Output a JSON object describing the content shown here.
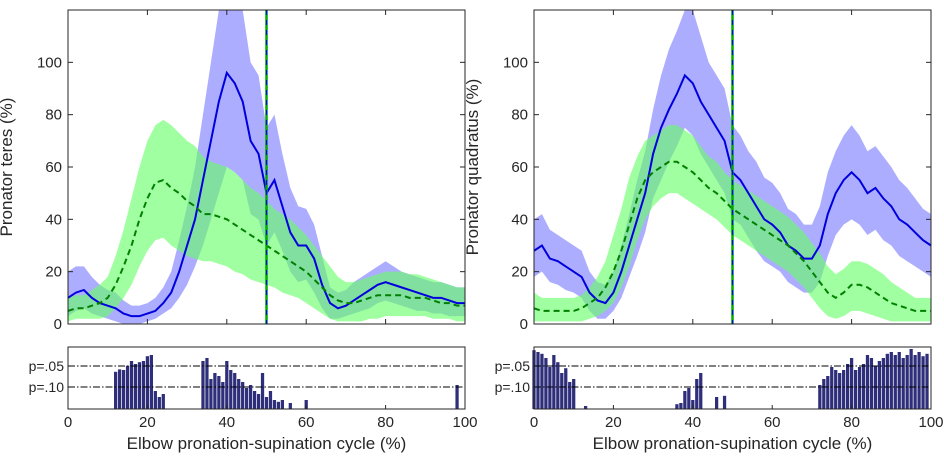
{
  "chart_data": [
    {
      "type": "line",
      "ylabel": "Pronator teres (%)",
      "xlim": [
        0,
        100
      ],
      "ylim": [
        0,
        120
      ],
      "yticks": [
        0,
        20,
        40,
        60,
        80,
        100
      ],
      "xticks": [
        0,
        20,
        40,
        60,
        80,
        100
      ],
      "vline_x": 50,
      "series": [
        {
          "style": "solid",
          "color": "#0000dd",
          "band_color": "#7b7bff",
          "x": [
            0,
            2,
            4,
            6,
            8,
            10,
            12,
            14,
            16,
            18,
            20,
            22,
            24,
            26,
            28,
            30,
            32,
            34,
            36,
            38,
            40,
            42,
            44,
            46,
            48,
            50,
            52,
            54,
            56,
            58,
            60,
            62,
            64,
            66,
            68,
            70,
            72,
            74,
            76,
            78,
            80,
            82,
            84,
            86,
            88,
            90,
            92,
            94,
            96,
            98,
            100
          ],
          "y": [
            10,
            12,
            13,
            10,
            8,
            7,
            6,
            4,
            3,
            3,
            4,
            5,
            8,
            12,
            20,
            30,
            40,
            55,
            70,
            85,
            96,
            92,
            85,
            70,
            65,
            50,
            55,
            45,
            35,
            30,
            30,
            25,
            15,
            8,
            6,
            7,
            9,
            11,
            13,
            15,
            16,
            15,
            14,
            13,
            12,
            11,
            10,
            10,
            9,
            8,
            8
          ],
          "lower": [
            3,
            5,
            6,
            4,
            3,
            2,
            1,
            0,
            0,
            0,
            1,
            2,
            4,
            6,
            10,
            15,
            22,
            30,
            40,
            50,
            60,
            58,
            55,
            42,
            40,
            30,
            35,
            28,
            20,
            16,
            17,
            12,
            6,
            2,
            2,
            3,
            4,
            5,
            6,
            8,
            9,
            8,
            7,
            6,
            5,
            5,
            4,
            4,
            3,
            3,
            3
          ],
          "upper": [
            20,
            22,
            22,
            18,
            15,
            13,
            12,
            9,
            7,
            7,
            8,
            10,
            14,
            20,
            32,
            45,
            60,
            80,
            100,
            120,
            120,
            120,
            120,
            100,
            95,
            75,
            80,
            65,
            52,
            45,
            44,
            38,
            26,
            14,
            12,
            13,
            16,
            18,
            20,
            22,
            24,
            22,
            20,
            19,
            18,
            17,
            16,
            16,
            15,
            14,
            14
          ]
        },
        {
          "style": "dashed",
          "color": "#007f00",
          "band_color": "#66ff66",
          "x": [
            0,
            2,
            4,
            6,
            8,
            10,
            12,
            14,
            16,
            18,
            20,
            22,
            24,
            26,
            28,
            30,
            32,
            34,
            36,
            38,
            40,
            42,
            44,
            46,
            48,
            50,
            52,
            54,
            56,
            58,
            60,
            62,
            64,
            66,
            68,
            70,
            72,
            74,
            76,
            78,
            80,
            82,
            84,
            86,
            88,
            90,
            92,
            94,
            96,
            98,
            100
          ],
          "y": [
            5,
            6,
            6,
            7,
            8,
            10,
            15,
            22,
            30,
            40,
            48,
            54,
            55,
            52,
            50,
            47,
            45,
            42,
            42,
            41,
            40,
            38,
            36,
            34,
            32,
            30,
            28,
            26,
            24,
            22,
            20,
            17,
            14,
            11,
            9,
            8,
            8,
            9,
            10,
            11,
            11,
            11,
            11,
            10,
            10,
            10,
            9,
            8,
            8,
            7,
            7
          ],
          "lower": [
            1,
            2,
            2,
            2,
            2,
            3,
            6,
            10,
            15,
            22,
            28,
            32,
            33,
            30,
            28,
            26,
            25,
            24,
            24,
            23,
            22,
            20,
            19,
            17,
            16,
            15,
            14,
            12,
            11,
            10,
            8,
            6,
            4,
            2,
            1,
            1,
            1,
            1,
            2,
            2,
            3,
            3,
            3,
            3,
            3,
            3,
            2,
            2,
            2,
            1,
            1
          ],
          "upper": [
            10,
            11,
            11,
            13,
            15,
            18,
            26,
            36,
            48,
            60,
            70,
            76,
            78,
            76,
            73,
            70,
            68,
            64,
            62,
            61,
            60,
            58,
            55,
            52,
            50,
            47,
            44,
            42,
            40,
            37,
            34,
            30,
            26,
            22,
            18,
            16,
            16,
            17,
            18,
            19,
            20,
            20,
            20,
            19,
            19,
            18,
            17,
            16,
            15,
            14,
            14
          ]
        }
      ],
      "significance": {
        "levels": [
          "p=.05",
          "p=.10"
        ],
        "x": [
          12,
          13,
          14,
          15,
          16,
          17,
          18,
          19,
          20,
          21,
          22,
          23,
          24,
          34,
          35,
          36,
          37,
          38,
          39,
          40,
          41,
          42,
          43,
          44,
          45,
          46,
          47,
          48,
          49,
          50,
          51,
          52,
          53,
          54,
          56,
          60,
          98
        ],
        "v": [
          0.62,
          0.66,
          0.65,
          0.72,
          0.8,
          0.75,
          0.78,
          0.8,
          0.88,
          0.9,
          0.3,
          0.2,
          0.25,
          0.8,
          0.85,
          0.5,
          0.6,
          0.55,
          0.45,
          0.8,
          0.65,
          0.6,
          0.5,
          0.45,
          0.35,
          0.4,
          0.3,
          0.25,
          0.6,
          0.2,
          0.3,
          0.15,
          0.12,
          0.15,
          0.1,
          0.15,
          0.4
        ]
      }
    },
    {
      "type": "line",
      "ylabel": "Pronator quadratus (%)",
      "xlim": [
        0,
        100
      ],
      "ylim": [
        0,
        120
      ],
      "yticks": [
        0,
        20,
        40,
        60,
        80,
        100
      ],
      "xticks": [
        0,
        20,
        40,
        60,
        80,
        100
      ],
      "vline_x": 50,
      "series": [
        {
          "style": "solid",
          "color": "#0000dd",
          "band_color": "#7b7bff",
          "x": [
            0,
            2,
            4,
            6,
            8,
            10,
            12,
            14,
            16,
            18,
            20,
            22,
            24,
            26,
            28,
            30,
            32,
            34,
            36,
            38,
            40,
            42,
            44,
            46,
            48,
            50,
            52,
            54,
            56,
            58,
            60,
            62,
            64,
            66,
            68,
            70,
            72,
            74,
            76,
            78,
            80,
            82,
            84,
            86,
            88,
            90,
            92,
            94,
            96,
            98,
            100
          ],
          "y": [
            28,
            30,
            25,
            24,
            22,
            20,
            18,
            12,
            9,
            8,
            12,
            20,
            30,
            40,
            50,
            65,
            75,
            82,
            88,
            95,
            92,
            85,
            80,
            75,
            70,
            58,
            55,
            50,
            45,
            40,
            38,
            35,
            30,
            28,
            25,
            25,
            30,
            42,
            50,
            55,
            58,
            55,
            50,
            52,
            48,
            45,
            40,
            38,
            35,
            32,
            30
          ],
          "lower": [
            18,
            20,
            16,
            15,
            13,
            12,
            10,
            5,
            2,
            2,
            5,
            10,
            18,
            26,
            35,
            48,
            55,
            62,
            68,
            75,
            72,
            65,
            60,
            55,
            50,
            40,
            38,
            33,
            28,
            24,
            22,
            20,
            16,
            14,
            12,
            12,
            16,
            26,
            34,
            38,
            40,
            38,
            34,
            36,
            32,
            30,
            26,
            24,
            22,
            20,
            18
          ],
          "upper": [
            40,
            42,
            36,
            34,
            32,
            30,
            28,
            20,
            16,
            15,
            20,
            30,
            42,
            55,
            66,
            82,
            95,
            105,
            112,
            120,
            120,
            110,
            100,
            95,
            90,
            76,
            72,
            66,
            62,
            56,
            54,
            50,
            44,
            42,
            38,
            38,
            45,
            58,
            66,
            72,
            76,
            72,
            66,
            68,
            64,
            60,
            55,
            52,
            48,
            44,
            42
          ]
        },
        {
          "style": "dashed",
          "color": "#007f00",
          "band_color": "#66ff66",
          "x": [
            0,
            2,
            4,
            6,
            8,
            10,
            12,
            14,
            16,
            18,
            20,
            22,
            24,
            26,
            28,
            30,
            32,
            34,
            36,
            38,
            40,
            42,
            44,
            46,
            48,
            50,
            52,
            54,
            56,
            58,
            60,
            62,
            64,
            66,
            68,
            70,
            72,
            74,
            76,
            78,
            80,
            82,
            84,
            86,
            88,
            90,
            92,
            94,
            96,
            98,
            100
          ],
          "y": [
            6,
            5,
            5,
            5,
            5,
            5,
            6,
            8,
            10,
            14,
            20,
            28,
            38,
            48,
            55,
            58,
            60,
            62,
            62,
            60,
            58,
            55,
            52,
            50,
            47,
            44,
            42,
            40,
            38,
            36,
            34,
            32,
            30,
            27,
            24,
            20,
            16,
            12,
            10,
            12,
            15,
            15,
            14,
            12,
            10,
            8,
            7,
            6,
            5,
            5,
            5
          ],
          "lower": [
            1,
            1,
            1,
            1,
            1,
            1,
            1,
            2,
            3,
            5,
            8,
            14,
            22,
            32,
            40,
            45,
            48,
            50,
            50,
            48,
            46,
            44,
            42,
            40,
            37,
            34,
            32,
            30,
            28,
            26,
            24,
            22,
            20,
            17,
            14,
            10,
            6,
            3,
            2,
            3,
            5,
            5,
            4,
            3,
            2,
            1,
            1,
            1,
            1,
            1,
            1
          ],
          "upper": [
            12,
            10,
            10,
            10,
            10,
            10,
            11,
            14,
            18,
            24,
            34,
            44,
            56,
            64,
            70,
            72,
            74,
            76,
            76,
            74,
            72,
            68,
            64,
            62,
            58,
            55,
            53,
            51,
            49,
            47,
            45,
            43,
            41,
            38,
            35,
            31,
            27,
            22,
            19,
            21,
            24,
            24,
            23,
            21,
            19,
            16,
            14,
            12,
            10,
            10,
            10
          ]
        }
      ],
      "significance": {
        "levels": [
          "p=.05",
          "p=.10"
        ],
        "x": [
          0,
          1,
          2,
          3,
          4,
          5,
          6,
          7,
          8,
          9,
          10,
          13,
          36,
          37,
          38,
          39,
          40,
          41,
          42,
          46,
          48,
          72,
          73,
          74,
          75,
          76,
          77,
          78,
          79,
          80,
          81,
          82,
          83,
          84,
          85,
          86,
          87,
          88,
          89,
          90,
          91,
          92,
          93,
          94,
          95,
          96,
          97,
          98,
          99
        ],
        "v": [
          0.98,
          0.95,
          0.92,
          0.85,
          0.7,
          0.9,
          0.78,
          0.6,
          0.68,
          0.45,
          0.5,
          0.05,
          0.08,
          0.1,
          0.3,
          0.35,
          0.15,
          0.5,
          0.6,
          0.2,
          0.22,
          0.4,
          0.5,
          0.55,
          0.7,
          0.65,
          0.6,
          0.65,
          0.75,
          0.85,
          0.65,
          0.7,
          0.75,
          0.9,
          0.85,
          0.72,
          0.8,
          0.85,
          0.92,
          0.95,
          0.9,
          0.95,
          0.85,
          0.9,
          1.0,
          0.9,
          0.95,
          0.88,
          0.92
        ]
      }
    }
  ],
  "xlabel": "Elbow pronation-supination cycle (%)"
}
